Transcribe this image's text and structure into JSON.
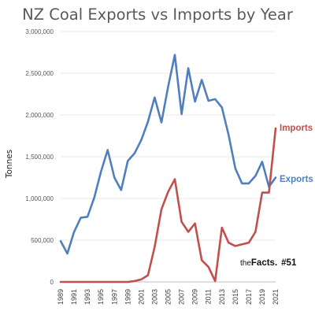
{
  "chart_data": {
    "type": "line",
    "title": "NZ Coal Exports vs Imports by Year",
    "ylabel": "Tonnes",
    "xlabel": "",
    "ylim": [
      0,
      3000000
    ],
    "grid": true,
    "x": [
      1989,
      1990,
      1991,
      1992,
      1993,
      1994,
      1995,
      1996,
      1997,
      1998,
      1999,
      2000,
      2001,
      2002,
      2003,
      2004,
      2005,
      2006,
      2007,
      2008,
      2009,
      2010,
      2011,
      2012,
      2013,
      2014,
      2015,
      2016,
      2017,
      2018,
      2019,
      2020,
      2021
    ],
    "x_tick_labels": [
      "1989",
      "1991",
      "1993",
      "1995",
      "1997",
      "1999",
      "2001",
      "2003",
      "2005",
      "2007",
      "2009",
      "2011",
      "2013",
      "2015",
      "2017",
      "2019",
      "2021"
    ],
    "y_tick_labels": [
      "0",
      "500,000",
      "1,000,000",
      "1,500,000",
      "2,000,000",
      "2,500,000",
      "3,000,000"
    ],
    "y_ticks": [
      0,
      500000,
      1000000,
      1500000,
      2000000,
      2500000,
      3000000
    ],
    "series": [
      {
        "name": "Exports",
        "color": "#4f7fbf",
        "values": [
          490000,
          340000,
          600000,
          770000,
          780000,
          1010000,
          1320000,
          1580000,
          1250000,
          1100000,
          1450000,
          1540000,
          1700000,
          1920000,
          2210000,
          1910000,
          2340000,
          2720000,
          2010000,
          2560000,
          2160000,
          2420000,
          2170000,
          2190000,
          2090000,
          1760000,
          1360000,
          1180000,
          1180000,
          1270000,
          1440000,
          1140000,
          1250000
        ]
      },
      {
        "name": "Imports",
        "color": "#c0504d",
        "values": [
          0,
          0,
          0,
          0,
          0,
          0,
          0,
          0,
          0,
          0,
          0,
          10000,
          30000,
          80000,
          420000,
          870000,
          1080000,
          1230000,
          720000,
          600000,
          700000,
          260000,
          180000,
          10000,
          650000,
          470000,
          430000,
          450000,
          470000,
          600000,
          1070000,
          1070000,
          1840000
        ]
      }
    ]
  },
  "branding": {
    "prefix": "the",
    "name": "Facts.",
    "issue": "#51"
  }
}
